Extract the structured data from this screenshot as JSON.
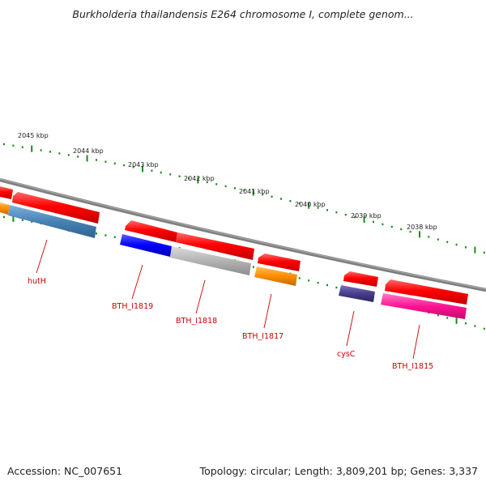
{
  "title": "Burkholderia thailandensis E264 chromosome I, complete genom...",
  "footer": {
    "accession": "Accession: NC_007651",
    "topology": "Topology: circular; Length: 3,809,201 bp; Genes: 3,337"
  },
  "scale_labels": [
    "2045 kbp",
    "2044 kbp",
    "2043 kbp",
    "2042 kbp",
    "2041 kbp",
    "2040 kbp",
    "2039 kbp",
    "2038 kbp"
  ],
  "genes": [
    {
      "label": "hutH",
      "color": "#4682b4"
    },
    {
      "label": "BTH_I1819",
      "color": "#0000ff"
    },
    {
      "label": "BTH_I1818",
      "color": "#b3b3b3"
    },
    {
      "label": "BTH_I1817",
      "color": "#ff8c00"
    },
    {
      "label": "cysC",
      "color": "#483d8b"
    },
    {
      "label": "BTH_I1815",
      "color": "#ff1493"
    }
  ],
  "colors": {
    "cds": "#ff0000",
    "backbone": "#808080",
    "ticks": "#1a8a1a",
    "labels": "#cc0000"
  }
}
